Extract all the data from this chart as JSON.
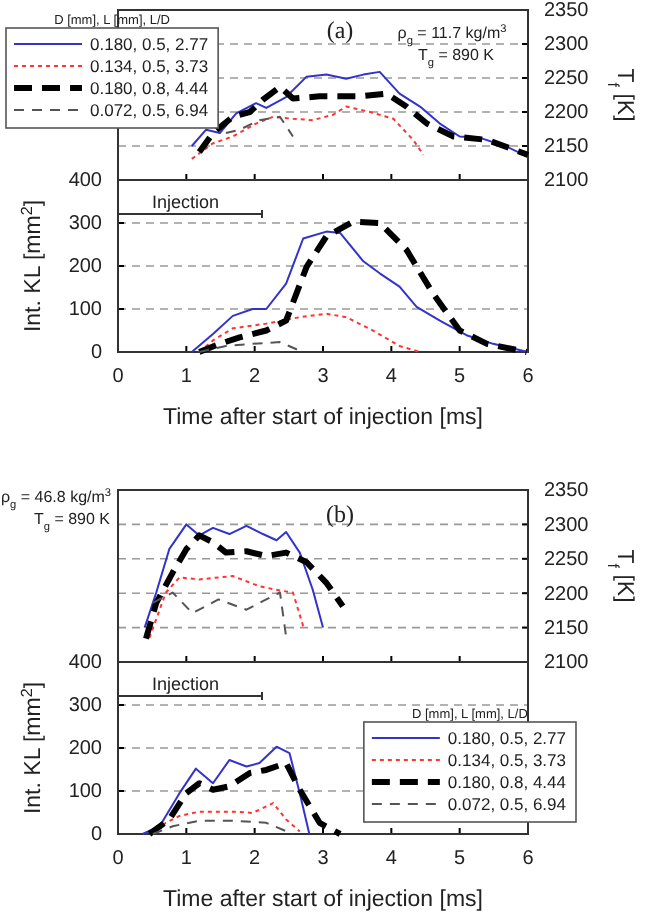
{
  "chart_data": [
    {
      "type": "line",
      "ylabel": "T$_{f}$ [K]",
      "xlim": [
        0,
        6
      ],
      "xticks": [
        0,
        1,
        2,
        3,
        4,
        5,
        6
      ],
      "ylim": [
        2100,
        2350
      ],
      "yticks": [
        2100,
        2150,
        2200,
        2250,
        2300,
        2350
      ],
      "tick_labels": "y",
      "grid": "y",
      "legend": "top left",
      "legend_title": "D [mm], L [mm], L/D",
      "annotations": [
        "(a)",
        "ρ$_{g}$ = 11.7 kg/m$^{3}$",
        "T$_{g}$ = 890 K"
      ],
      "series": [
        {
          "name": "0.180, 0.5, 2.77",
          "color": "#3333cc",
          "line_style": "solid",
          "x": [
            1.08,
            1.29,
            1.49,
            1.73,
            2.02,
            2.17,
            2.46,
            2.76,
            3.05,
            3.34,
            3.59,
            3.83,
            4.12,
            4.42,
            4.71,
            5.0,
            5.3,
            5.69,
            6.0
          ],
          "values": [
            2150,
            2174,
            2169,
            2198,
            2213,
            2206,
            2222,
            2252,
            2255,
            2249,
            2255,
            2259,
            2227,
            2208,
            2183,
            2164,
            2162,
            2149,
            2134
          ]
        },
        {
          "name": "0.134, 0.5, 3.73",
          "color": "#ff3333",
          "line_style": "dotted",
          "x": [
            1.08,
            1.39,
            1.68,
            2.02,
            2.27,
            2.56,
            2.85,
            3.15,
            3.34,
            3.69,
            4.03,
            4.32,
            4.47
          ],
          "values": [
            2131,
            2154,
            2164,
            2183,
            2193,
            2190,
            2188,
            2196,
            2208,
            2200,
            2190,
            2159,
            2137
          ]
        },
        {
          "name": "0.180, 0.8, 4.44",
          "color": "#000000",
          "line_style": "dashed",
          "x": [
            1.19,
            1.39,
            1.68,
            1.93,
            2.12,
            2.37,
            2.56,
            2.95,
            3.54,
            3.93,
            4.22,
            4.52,
            4.91,
            5.4,
            6.0
          ],
          "values": [
            2141,
            2169,
            2193,
            2200,
            2218,
            2237,
            2220,
            2223,
            2223,
            2227,
            2208,
            2183,
            2164,
            2159,
            2137
          ]
        },
        {
          "name": "0.072, 0.5, 6.94",
          "color": "#555555",
          "line_style": "dashed",
          "x": [
            1.58,
            1.78,
            2.07,
            2.37,
            2.56
          ],
          "values": [
            2169,
            2174,
            2188,
            2193,
            2164
          ]
        }
      ]
    },
    {
      "type": "line",
      "xlabel": "Time after start of injection [ms]",
      "ylabel": "Int. KL [mm$^{2}$]",
      "xlim": [
        0,
        6
      ],
      "xticks": [
        0,
        1,
        2,
        3,
        4,
        5,
        6
      ],
      "ylim": [
        0,
        400
      ],
      "yticks": [
        0,
        100,
        200,
        300,
        400
      ],
      "grid": "y",
      "annotations": [
        "Injection"
      ],
      "series": [
        {
          "color": "#3333cc",
          "line_style": "solid",
          "x": [
            1.08,
            1.39,
            1.68,
            1.97,
            2.17,
            2.46,
            2.71,
            3.05,
            3.25,
            3.59,
            3.83,
            4.12,
            4.37,
            4.71,
            5.1,
            5.49,
            6.0
          ],
          "values": [
            0,
            42,
            84,
            100,
            100,
            159,
            264,
            280,
            277,
            211,
            183,
            152,
            105,
            73,
            39,
            19,
            0
          ]
        },
        {
          "color": "#ff3333",
          "line_style": "dotted",
          "x": [
            1.19,
            1.39,
            1.68,
            2.17,
            2.66,
            3.05,
            3.34,
            3.73,
            4.12,
            4.42
          ],
          "values": [
            0,
            27,
            55,
            66,
            81,
            89,
            81,
            50,
            14,
            0
          ]
        },
        {
          "color": "#000000",
          "line_style": "dashed",
          "x": [
            1.19,
            1.49,
            1.78,
            2.17,
            2.46,
            2.76,
            3.05,
            3.44,
            3.83,
            4.22,
            4.61,
            5.0,
            5.4,
            5.98
          ],
          "values": [
            0,
            19,
            34,
            50,
            73,
            198,
            269,
            303,
            300,
            238,
            136,
            50,
            19,
            0
          ]
        },
        {
          "color": "#555555",
          "line_style": "dashed",
          "x": [
            1.19,
            1.58,
            1.97,
            2.37,
            2.66
          ],
          "values": [
            0,
            14,
            19,
            23,
            3
          ]
        }
      ]
    },
    {
      "type": "line",
      "ylabel": "T$_{f}$ [K]",
      "xlim": [
        0,
        6
      ],
      "xticks": [
        0,
        1,
        2,
        3,
        4,
        5,
        6
      ],
      "ylim": [
        2100,
        2350
      ],
      "yticks": [
        2100,
        2150,
        2200,
        2250,
        2300,
        2350
      ],
      "tick_labels": "y",
      "grid": "y",
      "annotations": [
        "(b)",
        "ρ$_{g}$ = 46.8 kg/m$^{3}$",
        "T$_{g}$ = 890 K"
      ],
      "series": [
        {
          "color": "#3333cc",
          "line_style": "solid",
          "x": [
            0.39,
            0.56,
            0.75,
            1.0,
            1.19,
            1.39,
            1.63,
            1.88,
            2.12,
            2.32,
            2.46,
            2.66,
            2.85,
            3.0
          ],
          "values": [
            2150,
            2201,
            2264,
            2300,
            2284,
            2295,
            2286,
            2298,
            2286,
            2277,
            2289,
            2259,
            2205,
            2150
          ]
        },
        {
          "color": "#ff3333",
          "line_style": "dotted",
          "x": [
            0.46,
            0.7,
            0.9,
            1.19,
            1.68,
            2.07,
            2.37,
            2.56,
            2.71
          ],
          "values": [
            2135,
            2201,
            2223,
            2220,
            2225,
            2210,
            2204,
            2201,
            2152
          ]
        },
        {
          "color": "#000000",
          "line_style": "dashed",
          "x": [
            0.41,
            0.56,
            0.8,
            1.0,
            1.19,
            1.39,
            1.58,
            1.88,
            2.17,
            2.46,
            2.76,
            3.05,
            3.29
          ],
          "values": [
            2134,
            2186,
            2230,
            2264,
            2284,
            2274,
            2259,
            2261,
            2254,
            2259,
            2245,
            2215,
            2181
          ]
        },
        {
          "color": "#555555",
          "line_style": "dashed",
          "x": [
            0.51,
            0.8,
            1.09,
            1.47,
            1.88,
            2.17,
            2.37,
            2.46
          ],
          "values": [
            2186,
            2201,
            2171,
            2191,
            2176,
            2191,
            2201,
            2137
          ]
        }
      ]
    },
    {
      "type": "line",
      "xlabel": "Time after start of injection [ms]",
      "ylabel": "Int. KL [mm$^{2}$]",
      "xlim": [
        0,
        6
      ],
      "xticks": [
        0,
        1,
        2,
        3,
        4,
        5,
        6
      ],
      "ylim": [
        0,
        400
      ],
      "yticks": [
        0,
        100,
        200,
        300,
        400
      ],
      "grid": "y",
      "legend": "right",
      "legend_title": "D [mm], L [mm], L/D",
      "annotations": [
        "Injection"
      ],
      "series": [
        {
          "name": "0.180, 0.5, 2.77",
          "color": "#3333cc",
          "line_style": "solid",
          "x": [
            0.36,
            0.61,
            0.9,
            1.14,
            1.39,
            1.63,
            1.88,
            2.07,
            2.32,
            2.51,
            2.66,
            2.8
          ],
          "values": [
            0,
            18,
            95,
            152,
            118,
            172,
            157,
            165,
            203,
            188,
            95,
            0
          ]
        },
        {
          "name": "0.134, 0.5, 3.73",
          "color": "#ff3333",
          "line_style": "dotted",
          "x": [
            0.46,
            0.7,
            0.9,
            1.19,
            1.68,
            1.97,
            2.27,
            2.46,
            2.66
          ],
          "values": [
            0,
            26,
            42,
            52,
            52,
            49,
            72,
            34,
            6
          ]
        },
        {
          "name": "0.180, 0.8, 4.44",
          "color": "#000000",
          "line_style": "dashed",
          "x": [
            0.46,
            0.75,
            1.0,
            1.19,
            1.39,
            1.63,
            1.93,
            2.17,
            2.46,
            2.66,
            2.95,
            3.25
          ],
          "values": [
            0,
            34,
            95,
            118,
            103,
            111,
            142,
            149,
            165,
            103,
            26,
            0
          ]
        },
        {
          "name": "0.072, 0.5, 6.94",
          "color": "#555555",
          "line_style": "dashed",
          "x": [
            0.51,
            0.8,
            1.19,
            1.68,
            2.17,
            2.56
          ],
          "values": [
            0,
            18,
            31,
            31,
            26,
            0
          ]
        }
      ]
    }
  ]
}
